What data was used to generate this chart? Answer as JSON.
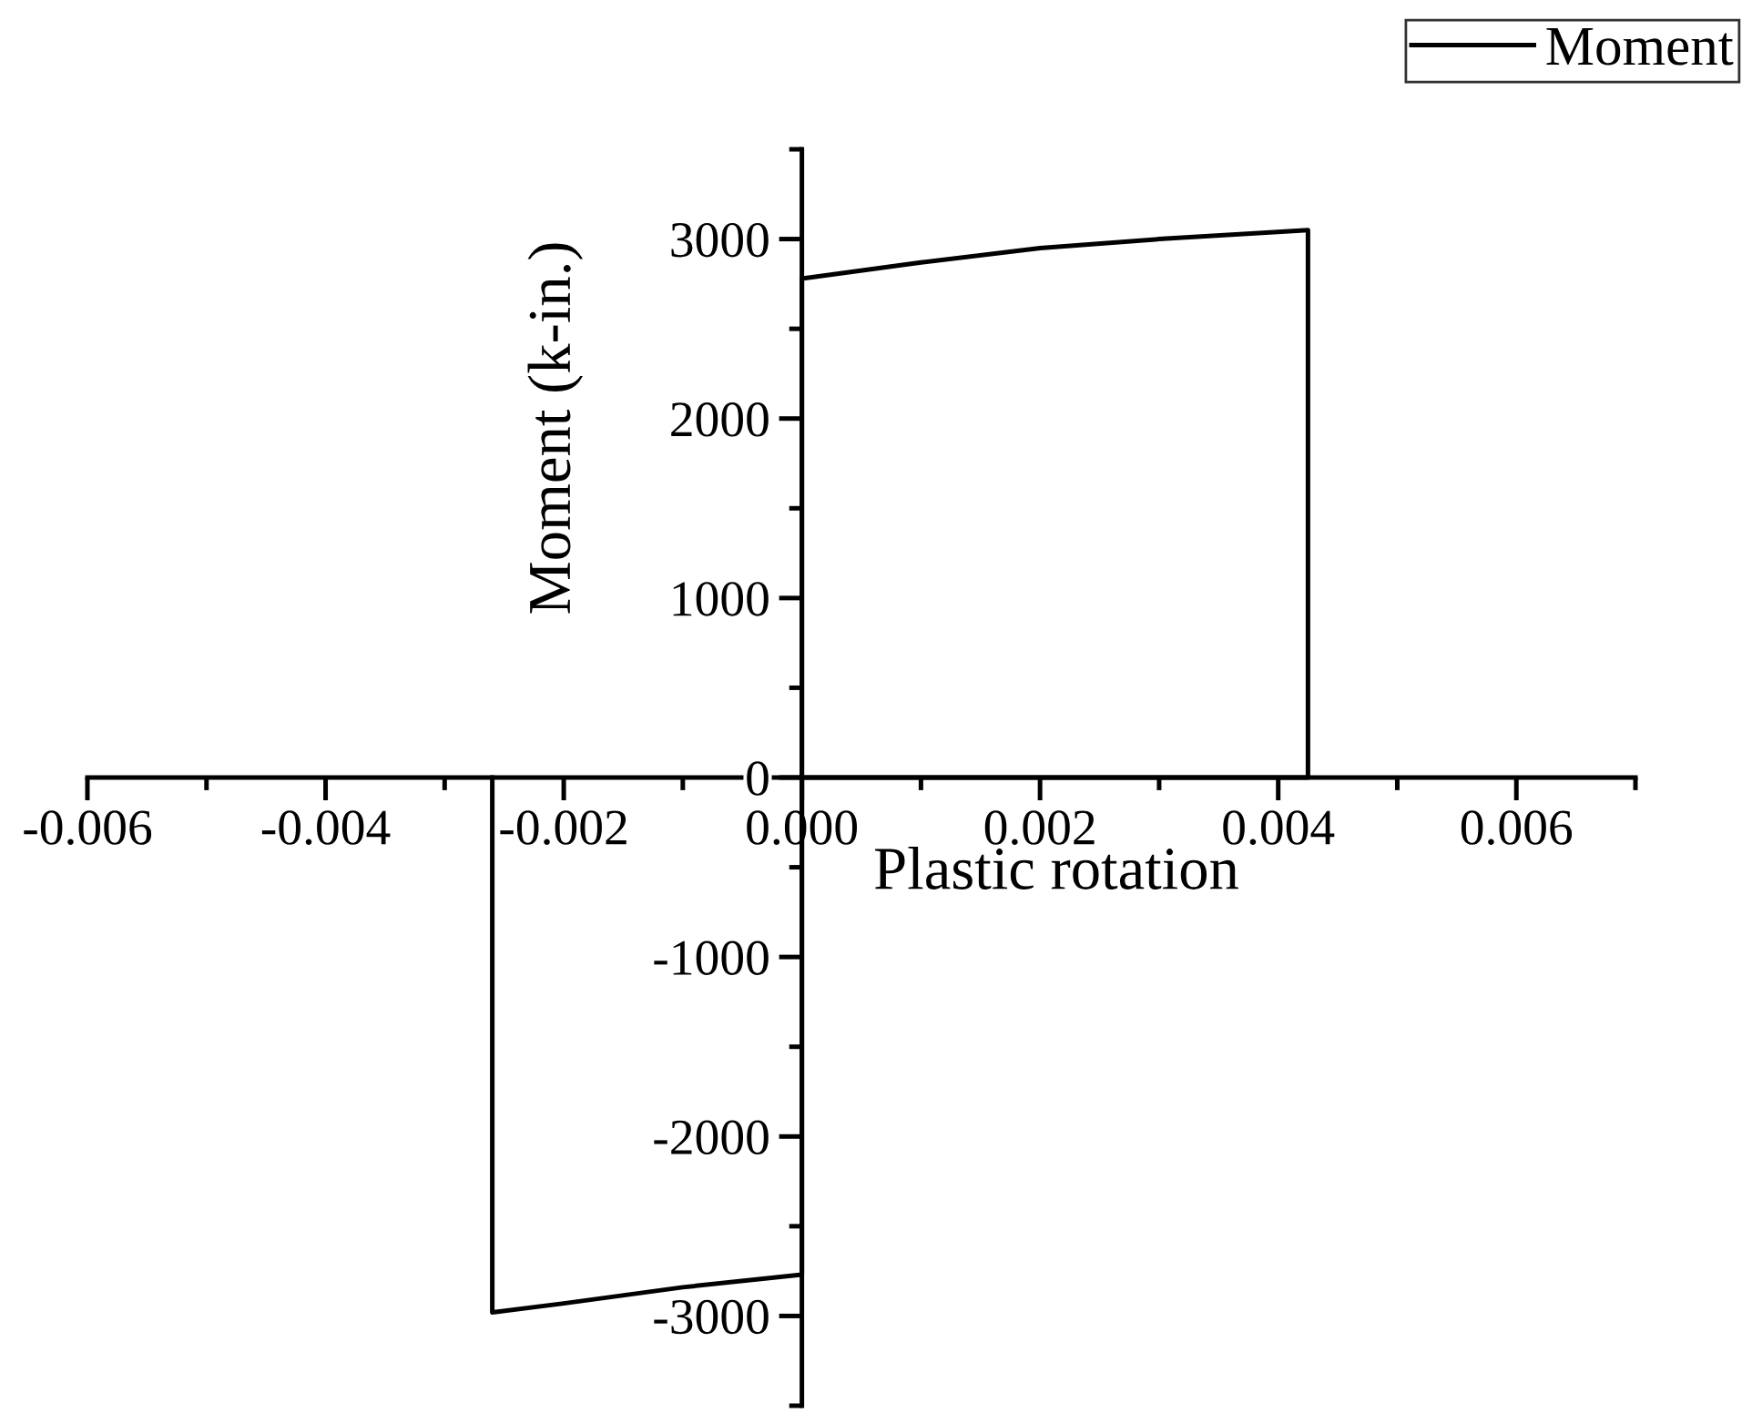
{
  "chart_data": {
    "type": "line",
    "xlabel": "Plastic rotation",
    "ylabel": "Moment (k-in.)",
    "legend": "top right",
    "grid": false,
    "marker": "none",
    "line_style": "solid",
    "xlim": [
      -0.006,
      0.007
    ],
    "ylim": [
      -3500,
      3500
    ],
    "xticks": [
      {
        "value": -0.006,
        "label": "-0.006"
      },
      {
        "value": -0.004,
        "label": "-0.004"
      },
      {
        "value": -0.002,
        "label": "-0.002"
      },
      {
        "value": 0,
        "label": "0.000"
      },
      {
        "value": 0.002,
        "label": "0.002"
      },
      {
        "value": 0.004,
        "label": "0.004"
      },
      {
        "value": 0.006,
        "label": "0.006"
      }
    ],
    "yticks": [
      {
        "value": -3000,
        "label": "-3000"
      },
      {
        "value": -2000,
        "label": "-2000"
      },
      {
        "value": -1000,
        "label": "-1000"
      },
      0,
      1000,
      2000,
      3000
    ],
    "series": [
      {
        "name": "Moment",
        "color": "#000000",
        "x": [
          0,
          0,
          0.001,
          0.002,
          0.003,
          0.00425,
          0.00425,
          0,
          0,
          -0.001,
          -0.002,
          -0.0026,
          -0.0026
        ],
        "values": [
          0,
          2780,
          2870,
          2950,
          3000,
          3050,
          0,
          0,
          -2770,
          -2840,
          -2930,
          -2980,
          0
        ]
      }
    ]
  }
}
